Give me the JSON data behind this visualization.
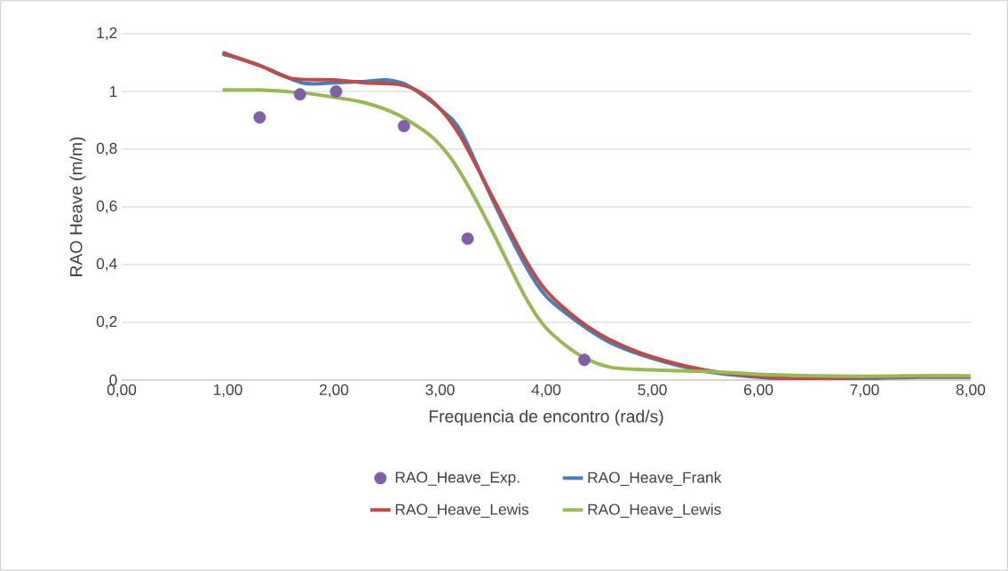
{
  "chart_data": {
    "type": "line",
    "xlabel": "Frequencia de encontro (rad/s)",
    "ylabel": "RAO Heave (m/m)",
    "xlim": [
      0,
      8
    ],
    "ylim": [
      0,
      1.2
    ],
    "xticks": [
      {
        "value": 0,
        "label": "0,00"
      },
      {
        "value": 1,
        "label": "1,00"
      },
      {
        "value": 2,
        "label": "2,00"
      },
      {
        "value": 3,
        "label": "3,00"
      },
      {
        "value": 4,
        "label": "4,00"
      },
      {
        "value": 5,
        "label": "5,00"
      },
      {
        "value": 6,
        "label": "6,00"
      },
      {
        "value": 7,
        "label": "7,00"
      },
      {
        "value": 8,
        "label": "8,00"
      }
    ],
    "yticks": [
      0,
      {
        "value": 0.2,
        "label": "0,2"
      },
      {
        "value": 0.4,
        "label": "0,4"
      },
      {
        "value": 0.6,
        "label": "0,6"
      },
      {
        "value": 0.8,
        "label": "0,8"
      },
      1,
      {
        "value": 1.2,
        "label": "1,2"
      }
    ],
    "grid": "y",
    "legend": "bottom",
    "series": [
      {
        "name": "RAO_Heave_Exp.",
        "type": "scatter",
        "color": "#7f60a8",
        "x": [
          1.3,
          1.68,
          2.02,
          2.66,
          3.26,
          4.36
        ],
        "values": [
          0.91,
          0.99,
          1.0,
          0.88,
          0.49,
          0.07
        ]
      },
      {
        "name": "RAO_Heave_Frank",
        "color": "#4a7ebb",
        "x": [
          0.95,
          1.3,
          1.7,
          2.0,
          2.3,
          2.5,
          2.7,
          3.0,
          3.2,
          3.5,
          3.8,
          4.0,
          4.3,
          4.6,
          5.0,
          5.5,
          6.0,
          6.5,
          7.0,
          7.5,
          8.0
        ],
        "values": [
          1.13,
          1.09,
          1.03,
          1.03,
          1.035,
          1.04,
          1.02,
          0.94,
          0.86,
          0.62,
          0.4,
          0.29,
          0.2,
          0.13,
          0.075,
          0.03,
          0.01,
          0.0,
          0.005,
          0.01,
          0.01
        ]
      },
      {
        "name": "RAO_Heave_Lewis",
        "color": "#be4b48",
        "x": [
          0.95,
          1.3,
          1.6,
          2.0,
          2.3,
          2.6,
          2.8,
          3.0,
          3.2,
          3.5,
          3.8,
          4.0,
          4.3,
          4.6,
          5.0,
          5.5,
          6.0,
          6.5,
          7.0,
          7.5,
          8.0
        ],
        "values": [
          1.135,
          1.09,
          1.045,
          1.04,
          1.03,
          1.025,
          1.0,
          0.94,
          0.84,
          0.63,
          0.42,
          0.31,
          0.21,
          0.14,
          0.08,
          0.035,
          0.012,
          0.003,
          0.01,
          0.012,
          0.012
        ]
      },
      {
        "name": "RAO_Heave_Lewis",
        "color": "#98b954",
        "x": [
          0.95,
          1.3,
          1.7,
          2.0,
          2.3,
          2.6,
          2.9,
          3.1,
          3.3,
          3.5,
          3.8,
          4.0,
          4.3,
          4.6,
          5.0,
          5.5,
          6.0,
          6.5,
          7.0,
          7.5,
          8.0
        ],
        "values": [
          1.005,
          1.005,
          0.995,
          0.98,
          0.96,
          0.92,
          0.85,
          0.77,
          0.65,
          0.51,
          0.29,
          0.18,
          0.09,
          0.045,
          0.035,
          0.03,
          0.02,
          0.015,
          0.013,
          0.015,
          0.015
        ]
      }
    ]
  }
}
